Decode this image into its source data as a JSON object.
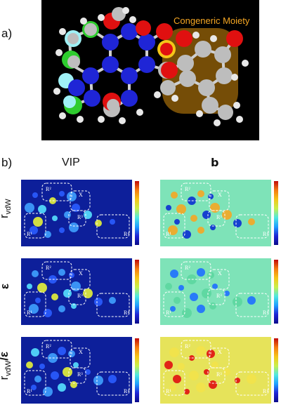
{
  "panel_a": {
    "label": "a)",
    "annotation": "Congeneric Moiety",
    "colors": {
      "background": "#000000",
      "carbon": "#bdbdbd",
      "nitrogen": "#1f25d6",
      "oxygen": "#e01010",
      "fluorine": "#9ff0f5",
      "chlorine": "#2ecc2e",
      "hydrogen": "#e8e8e8",
      "highlight": "#b07a0a",
      "annotation": "#f5a623"
    }
  },
  "panel_b": {
    "label": "b)",
    "columns": [
      "VIP",
      "b"
    ],
    "rows": [
      {
        "label_main": "r",
        "label_sub": "vdW",
        "label_tail": ""
      },
      {
        "label_main": "ε",
        "label_sub": "",
        "label_tail": ""
      },
      {
        "label_main": "r",
        "label_sub": "vdW",
        "label_tail": "/ε"
      }
    ],
    "region_labels": [
      "R¹",
      "R²",
      "X",
      "R³",
      "R⁴"
    ],
    "colors": {
      "vip_bg": "#0d1f9a",
      "b_bg_1": "#7ee3b8",
      "b_bg_2": "#7ee3b8",
      "b_bg_3": "#e6e35a"
    }
  }
}
